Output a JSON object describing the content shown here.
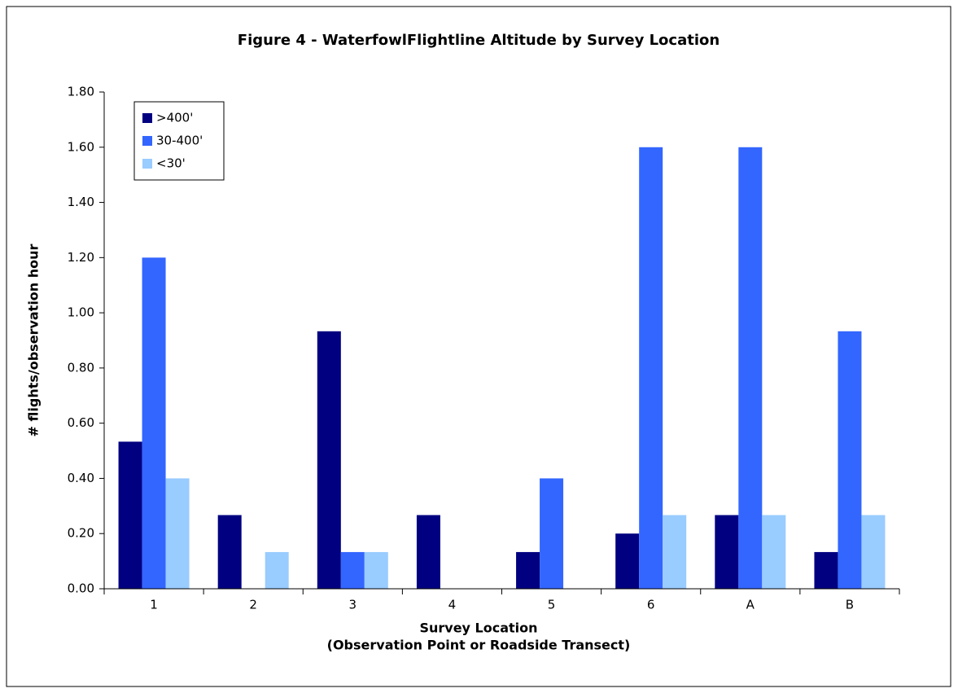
{
  "chart_data": {
    "type": "bar",
    "title": "Figure 4 - WaterfowlFlightline Altitude by Survey Location",
    "x_label": [
      "Survey Location",
      "(Observation Point or Roadside Transect)"
    ],
    "y_label": "# flights/observation hour",
    "categories": [
      "1",
      "2",
      "3",
      "4",
      "5",
      "6",
      "A",
      "B"
    ],
    "series": [
      {
        "name": ">400'",
        "color": "#000080",
        "values": [
          0.533,
          0.267,
          0.933,
          0.267,
          0.133,
          0.2,
          0.267,
          0.133
        ]
      },
      {
        "name": "30-400'",
        "color": "#3366ff",
        "values": [
          1.2,
          0,
          0.133,
          0,
          0.4,
          1.6,
          1.6,
          0.933
        ]
      },
      {
        "name": "<30'",
        "color": "#99ccff",
        "values": [
          0.4,
          0.133,
          0.133,
          0,
          0,
          0.267,
          0.267,
          0.267
        ]
      }
    ],
    "ylim": [
      0,
      1.8
    ],
    "yticks": [
      {
        "value": 0,
        "label": "0.00"
      },
      {
        "value": 0.2,
        "label": "0.20"
      },
      {
        "value": 0.4,
        "label": "0.40"
      },
      {
        "value": 0.6,
        "label": "0.60"
      },
      {
        "value": 0.8,
        "label": "0.80"
      },
      {
        "value": 1,
        "label": "1.00"
      },
      {
        "value": 1.2,
        "label": "1.20"
      },
      {
        "value": 1.4,
        "label": "1.40"
      },
      {
        "value": 1.6,
        "label": "1.60"
      },
      {
        "value": 1.8,
        "label": "1.80"
      }
    ],
    "grid": false,
    "legend": "top-left"
  }
}
